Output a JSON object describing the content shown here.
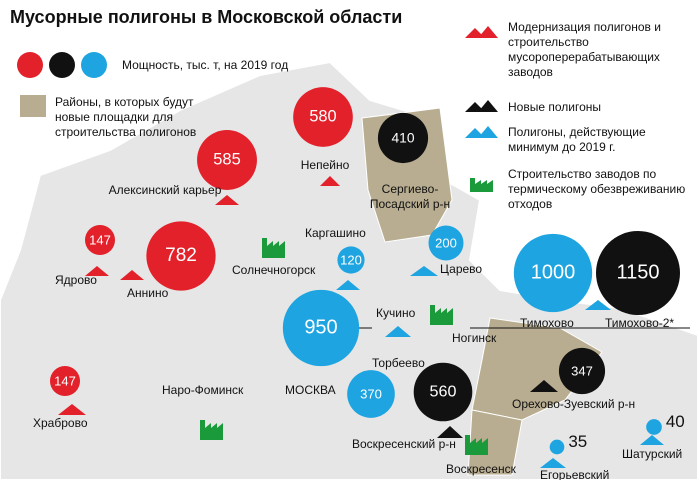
{
  "title": "Мусорные полигоны в Московской области",
  "legend": {
    "colors": [
      "#e3212b",
      "#111111",
      "#1ea4e0"
    ],
    "capacity": "Мощность, тыс. т, на 2019 год",
    "districts": "Районы, в которых будут новые площадки для строительства полигонов",
    "modernization": "Модернизация полигонов и строительство мусороперерабатывающих заводов",
    "new_landfills": "Новые полигоны",
    "active_landfills": "Полигоны, действующие минимум до 2019 г.",
    "thermal_plants": "Строительство заводов по термическому обезвреживанию отходов"
  },
  "sites": [
    {
      "name": "Алексинский карьер",
      "value": 585,
      "color": "#e3212b"
    },
    {
      "name": "Непейно",
      "value": 580,
      "color": "#e3212b"
    },
    {
      "name": "Сергиево-Посадский р-н",
      "value": 410,
      "color": "#111111"
    },
    {
      "name": "Ядрово",
      "value": 147,
      "color": "#e3212b"
    },
    {
      "name": "Аннино",
      "value": 782,
      "color": "#e3212b"
    },
    {
      "name": "Каргашино",
      "value": 120,
      "color": "#1ea4e0"
    },
    {
      "name": "Царево",
      "value": 200,
      "color": "#1ea4e0"
    },
    {
      "name": "Тимохово",
      "value": 1000,
      "color": "#1ea4e0"
    },
    {
      "name": "Тимохово-2*",
      "value": 1150,
      "color": "#111111"
    },
    {
      "name": "Кучино",
      "value": 950,
      "color": "#1ea4e0"
    },
    {
      "name": "Храброво",
      "value": 147,
      "color": "#e3212b"
    },
    {
      "name": null,
      "value": 370,
      "color": "#1ea4e0"
    },
    {
      "name": "Воскресенский р-н",
      "value": 560,
      "color": "#111111"
    },
    {
      "name": "Орехово-Зуевский р-н",
      "value": 347,
      "color": "#111111"
    },
    {
      "name": "Егорьевский",
      "value": 35,
      "color": "#1ea4e0"
    },
    {
      "name": "Шатурский",
      "value": 40,
      "color": "#1ea4e0"
    }
  ],
  "places": [
    "Солнечногорск",
    "Наро-Фоминск",
    "МОСКВА",
    "Торбеево",
    "Ногинск",
    "Воскресенск"
  ]
}
